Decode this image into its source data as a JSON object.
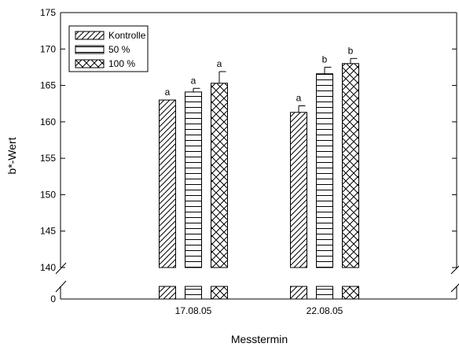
{
  "chart_data": {
    "type": "bar",
    "title": "",
    "xlabel": "Messtermin",
    "ylabel": "b*-Wert",
    "categories": [
      "17.08.05",
      "22.08.05"
    ],
    "ylim": [
      140,
      175
    ],
    "y_ticks": [
      "175",
      "170",
      "165",
      "160",
      "155",
      "150",
      "145",
      "140"
    ],
    "y_break_ticks": [
      "0"
    ],
    "axis_break": true,
    "grid": false,
    "legend_placement": "top-left",
    "series": [
      {
        "name": "Kontrolle",
        "pattern": "diagonal",
        "values": [
          163.0,
          161.3
        ],
        "errors": [
          0.0,
          0.9
        ],
        "letters": [
          "a",
          "a"
        ]
      },
      {
        "name": "50 %",
        "pattern": "horizontal",
        "values": [
          164.1,
          166.6
        ],
        "errors": [
          0.5,
          0.9
        ],
        "letters": [
          "a",
          "b"
        ]
      },
      {
        "name": "100 %",
        "pattern": "crosshatch",
        "values": [
          165.3,
          168.0
        ],
        "errors": [
          1.6,
          0.7
        ],
        "letters": [
          "a",
          "b"
        ]
      }
    ]
  }
}
